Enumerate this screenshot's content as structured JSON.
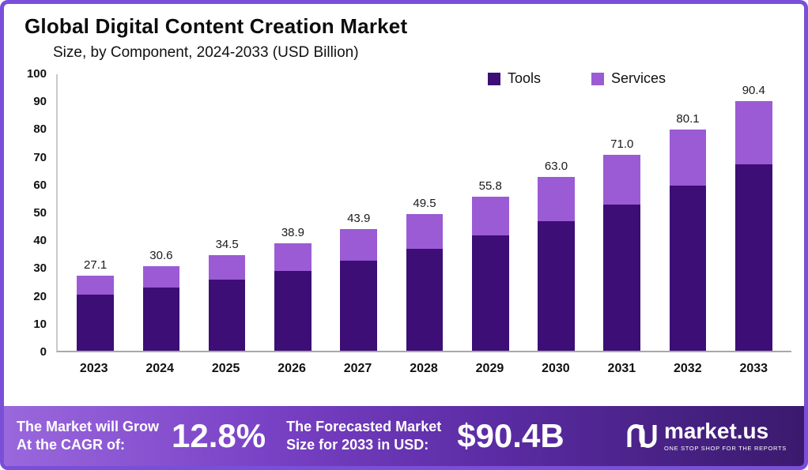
{
  "header": {
    "title": "Global Digital Content Creation Market",
    "subtitle": "Size, by Component, 2024-2033 (USD Billion)"
  },
  "colors": {
    "tools": "#3d0e75",
    "services": "#9b5bd4",
    "frame_border": "#7a4fd8",
    "footer_gradient_start": "#9a68dd",
    "footer_gradient_end": "#3a1a6d"
  },
  "chart_data": {
    "type": "bar",
    "stacked": true,
    "title": "Global Digital Content Creation Market",
    "subtitle": "Size, by Component, 2024-2033 (USD Billion)",
    "unit": "USD Billion",
    "categories": [
      "2023",
      "2024",
      "2025",
      "2026",
      "2027",
      "2028",
      "2029",
      "2030",
      "2031",
      "2032",
      "2033"
    ],
    "series": [
      {
        "name": "Tools",
        "color": "#3d0e75",
        "values": [
          20.2,
          22.8,
          25.7,
          29.0,
          32.7,
          36.9,
          41.6,
          46.9,
          52.9,
          59.7,
          67.4
        ]
      },
      {
        "name": "Services",
        "color": "#9b5bd4",
        "values": [
          6.9,
          7.8,
          8.8,
          9.9,
          11.2,
          12.6,
          14.2,
          16.1,
          18.1,
          20.4,
          23.0
        ]
      }
    ],
    "totals": [
      27.1,
      30.6,
      34.5,
      38.9,
      43.9,
      49.5,
      55.8,
      63.0,
      71.0,
      80.1,
      90.4
    ],
    "total_labels": [
      "27.1",
      "30.6",
      "34.5",
      "38.9",
      "43.9",
      "49.5",
      "55.8",
      "63.0",
      "71.0",
      "80.1",
      "90.4"
    ],
    "ylim": [
      0,
      100
    ],
    "yticks": [
      0,
      10,
      20,
      30,
      40,
      50,
      60,
      70,
      80,
      90,
      100
    ],
    "grid": false,
    "legend_position": "top-right"
  },
  "footer": {
    "cagr_label_line1": "The Market will Grow",
    "cagr_label_line2": "At the CAGR of:",
    "cagr_value": "12.8%",
    "forecast_label_line1": "The Forecasted Market",
    "forecast_label_line2": "Size for 2033 in USD:",
    "forecast_value": "$90.4B",
    "brand": "market.us",
    "brand_tagline": "ONE STOP SHOP FOR THE REPORTS"
  }
}
